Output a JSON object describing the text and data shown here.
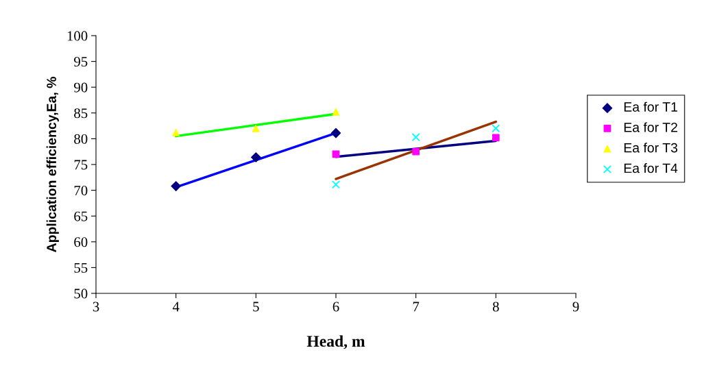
{
  "chart_data": {
    "type": "scatter",
    "xlabel": "Head, m",
    "ylabel": "Application efficiency,Ea, %",
    "xlim": [
      3,
      9
    ],
    "xticks": [
      3,
      4,
      5,
      6,
      7,
      8,
      9
    ],
    "ylim": [
      50,
      100
    ],
    "yticks": [
      50,
      55,
      60,
      65,
      70,
      75,
      80,
      85,
      90,
      95,
      100
    ],
    "grid": false,
    "legend": "right",
    "series": [
      {
        "name": "Ea for T1",
        "marker": "diamond",
        "color": "#000080",
        "x": [
          4,
          5,
          6
        ],
        "values": [
          70.8,
          76.4,
          81.1
        ]
      },
      {
        "name": "Ea for T2",
        "marker": "square",
        "color": "#ff00ff",
        "x": [
          6,
          7,
          8
        ],
        "values": [
          77.0,
          77.5,
          80.2
        ]
      },
      {
        "name": "Ea for T3",
        "marker": "triangle",
        "color": "#ffff00",
        "x": [
          4,
          5,
          6
        ],
        "values": [
          81.2,
          82.0,
          85.2
        ]
      },
      {
        "name": "Ea for T4",
        "marker": "cross",
        "color": "#00ffff",
        "x": [
          6,
          7,
          8
        ],
        "values": [
          71.1,
          80.3,
          82.0
        ]
      },
      {
        "type": "line",
        "marker": "none",
        "line_style": "solid",
        "color": "#0000ff",
        "x": [
          4,
          6
        ],
        "values": [
          70.6,
          81.1
        ]
      },
      {
        "type": "line",
        "marker": "none",
        "line_style": "solid",
        "color": "#000080",
        "x": [
          6,
          8
        ],
        "values": [
          76.5,
          79.6
        ]
      },
      {
        "type": "line",
        "marker": "none",
        "line_style": "solid",
        "color": "#00ff00",
        "x": [
          4,
          6
        ],
        "values": [
          80.5,
          84.8
        ]
      },
      {
        "type": "line",
        "marker": "none",
        "line_style": "solid",
        "color": "#993300",
        "x": [
          6,
          8
        ],
        "values": [
          72.2,
          83.3
        ]
      }
    ]
  }
}
